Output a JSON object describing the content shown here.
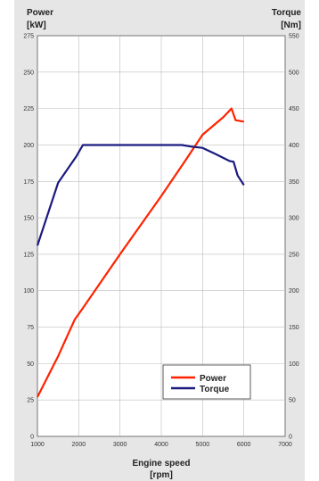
{
  "chart_data": {
    "type": "line",
    "title": "",
    "xlabel": "Engine speed",
    "xlabel_unit": "[rpm]",
    "ylabel_left": "Power",
    "ylabel_left_unit": "[kW]",
    "ylabel_right": "Torque",
    "ylabel_right_unit": "[Nm]",
    "xlim": [
      1000,
      7000
    ],
    "ylim_left": [
      0,
      275
    ],
    "ylim_right": [
      0,
      550
    ],
    "x_ticks": [
      1000,
      2000,
      3000,
      4000,
      5000,
      6000,
      7000
    ],
    "y_left_ticks": [
      0,
      25,
      50,
      75,
      100,
      125,
      150,
      175,
      200,
      225,
      250,
      275
    ],
    "y_right_ticks": [
      0,
      50,
      100,
      150,
      200,
      250,
      300,
      350,
      400,
      450,
      500,
      550
    ],
    "grid": true,
    "legend_position": "bottom-right",
    "series": [
      {
        "name": "Power",
        "axis": "left",
        "color": "#ff2200",
        "x": [
          1000,
          1500,
          1900,
          2100,
          3000,
          4000,
          4600,
          5000,
          5500,
          5700,
          5800,
          6000
        ],
        "y": [
          27,
          55,
          80,
          88,
          125,
          165,
          190,
          207,
          219,
          225,
          217,
          216
        ]
      },
      {
        "name": "Torque",
        "axis": "right",
        "color": "#1a1a80",
        "x": [
          1000,
          1500,
          1950,
          2100,
          2500,
          3000,
          3500,
          4000,
          4500,
          4700,
          5000,
          5300,
          5650,
          5750,
          5850,
          6000
        ],
        "y": [
          262,
          348,
          385,
          400,
          400,
          400,
          400,
          400,
          400,
          398,
          396,
          388,
          378,
          377,
          358,
          345
        ]
      }
    ]
  }
}
